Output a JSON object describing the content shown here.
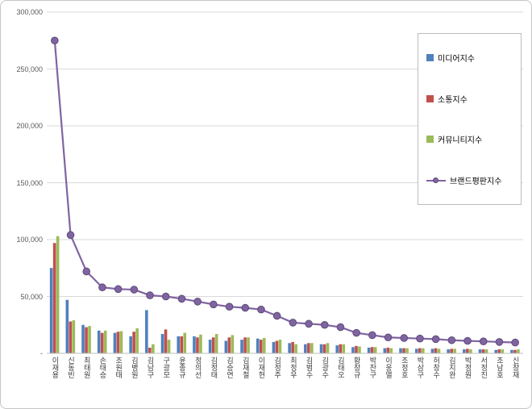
{
  "chart_data": {
    "type": "bar",
    "combo": "3 bar series + 1 line series with circle markers",
    "title": "",
    "xlabel": "",
    "ylabel": "",
    "ylim": [
      0,
      300000
    ],
    "ytick_interval": 50000,
    "ytick_labels": [
      "-",
      "50,000",
      "100,000",
      "150,000",
      "200,000",
      "250,000",
      "300,000"
    ],
    "grid": true,
    "legend_position": "inside-top-right",
    "categories": [
      "이재용",
      "신동빈",
      "최태원",
      "손태승",
      "조원태",
      "김병원",
      "김남구",
      "구광모",
      "윤종규",
      "정의선",
      "김정태",
      "김승연",
      "김재철",
      "이재현",
      "김정주",
      "최정우",
      "김범수",
      "김광수",
      "김태오",
      "황창규",
      "박찬구",
      "이웅열",
      "조정호",
      "박삼구",
      "허창수",
      "김지완",
      "박정원",
      "서정진",
      "조남호",
      "신창재"
    ],
    "series": [
      {
        "name": "미디어지수",
        "key": "media-index",
        "chart_type": "bar",
        "color": "#4F81BD",
        "values": [
          75000,
          47000,
          25000,
          20000,
          18000,
          15000,
          38000,
          17000,
          15000,
          15000,
          12000,
          11000,
          12000,
          13000,
          10000,
          9000,
          8000,
          8000,
          7000,
          5500,
          5000,
          4500,
          4500,
          4000,
          4000,
          3500,
          3500,
          3500,
          3000,
          3000
        ]
      },
      {
        "name": "소통지수",
        "key": "communication-index",
        "chart_type": "bar",
        "color": "#C0504D",
        "values": [
          97000,
          28000,
          23000,
          18000,
          19000,
          19000,
          5000,
          21000,
          15000,
          14000,
          14000,
          14000,
          14000,
          12000,
          11000,
          10000,
          9000,
          8000,
          8000,
          6500,
          5500,
          5000,
          4500,
          4500,
          4500,
          4000,
          4000,
          3500,
          3500,
          3000
        ]
      },
      {
        "name": "커뮤니티지수",
        "key": "community-index",
        "chart_type": "bar",
        "color": "#9BBB59",
        "values": [
          103000,
          29000,
          24000,
          20000,
          19500,
          22000,
          8000,
          12000,
          18000,
          16500,
          17000,
          16000,
          14000,
          13500,
          12000,
          8000,
          9000,
          9000,
          8000,
          6000,
          5500,
          4500,
          4500,
          4500,
          4000,
          4000,
          3500,
          3500,
          3500,
          3500
        ]
      },
      {
        "name": "브랜드평판지수",
        "key": "brand-reputation-index",
        "chart_type": "line",
        "marker": "circle",
        "color": "#8064A2",
        "marker_border_color": "#5D4A77",
        "values": [
          275000,
          104000,
          72000,
          58000,
          56500,
          56000,
          51000,
          50000,
          48000,
          45500,
          43000,
          41000,
          40000,
          38500,
          33000,
          27000,
          26000,
          25000,
          23000,
          18000,
          16000,
          14000,
          13500,
          13000,
          12500,
          11500,
          11000,
          10500,
          10000,
          9500
        ]
      }
    ]
  }
}
